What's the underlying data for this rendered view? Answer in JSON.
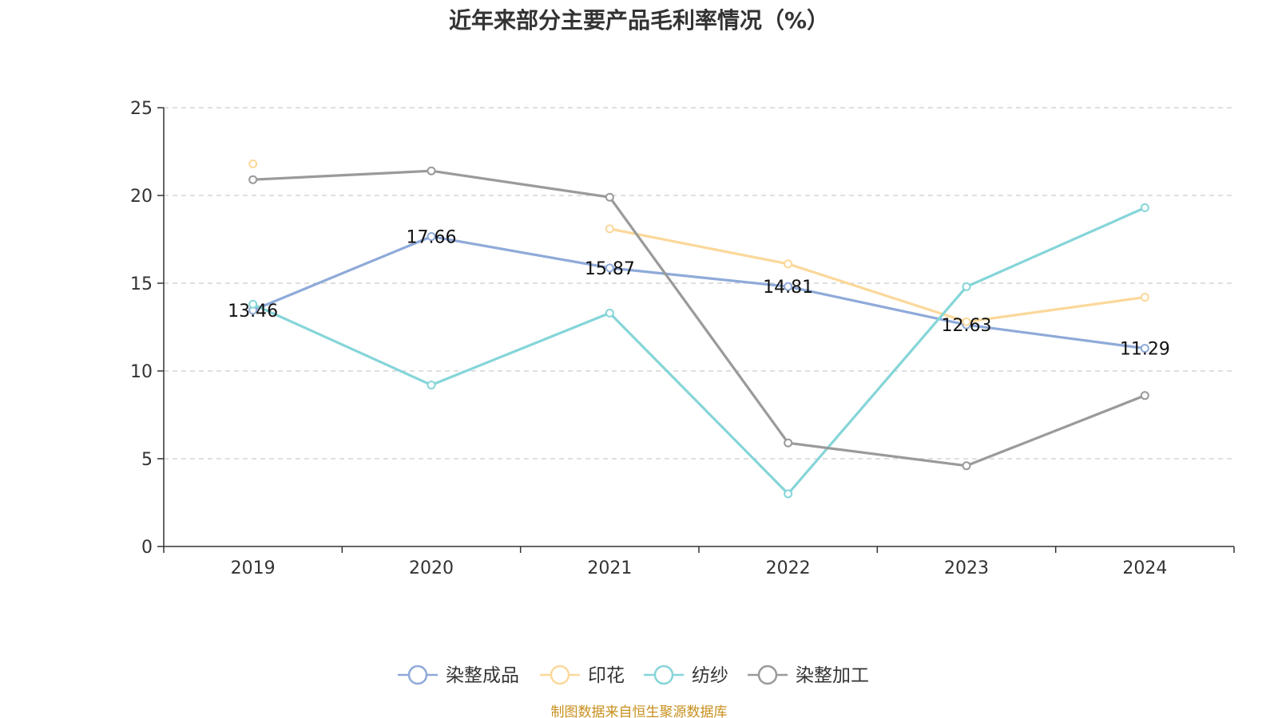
{
  "title": "近年来部分主要产品毛利率情况（%）",
  "source": "制图数据来自恒生聚源数据库",
  "chart_data": {
    "type": "line",
    "title": "近年来部分主要产品毛利率情况（%）",
    "categories": [
      "2019",
      "2020",
      "2021",
      "2022",
      "2023",
      "2024"
    ],
    "ylim": [
      0,
      25
    ],
    "yticks": [
      "0",
      "5",
      "10",
      "15",
      "20",
      "25"
    ],
    "grid": true,
    "legend_position": "bottom",
    "series": [
      {
        "name": "染整成品",
        "color": "#8eaad9",
        "values": [
          13.46,
          17.66,
          15.87,
          14.81,
          12.63,
          11.29
        ],
        "labels": [
          "13.46",
          "17.66",
          "15.87",
          "14.81",
          "12.63",
          "11.29"
        ]
      },
      {
        "name": "印花",
        "color": "#fbd89a",
        "values": [
          21.8,
          null,
          18.1,
          16.1,
          12.8,
          14.2
        ]
      },
      {
        "name": "纺纱",
        "color": "#85d5d8",
        "values": [
          13.8,
          9.2,
          13.3,
          3.0,
          14.8,
          19.3
        ]
      },
      {
        "name": "染整加工",
        "color": "#9a9a9a",
        "values": [
          20.9,
          21.4,
          19.9,
          5.9,
          4.6,
          8.6
        ]
      }
    ]
  }
}
